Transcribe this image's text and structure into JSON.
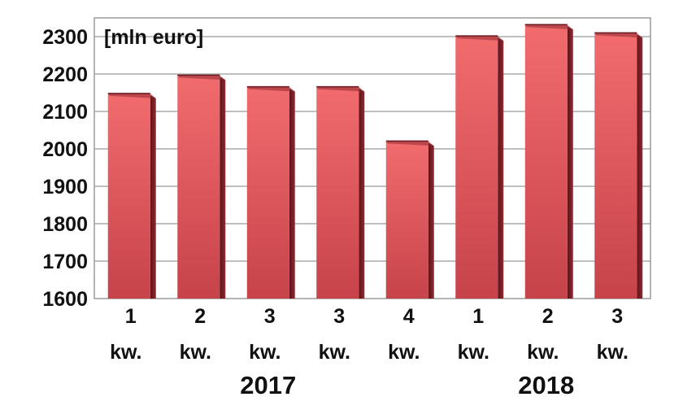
{
  "chart_data": {
    "type": "bar",
    "unit_label": "[mln euro]",
    "categories": [
      {
        "line1": "1",
        "line2": "kw."
      },
      {
        "line1": "2",
        "line2": "kw."
      },
      {
        "line1": "3",
        "line2": "kw."
      },
      {
        "line1": "3",
        "line2": "kw."
      },
      {
        "line1": "4",
        "line2": "kw."
      },
      {
        "line1": "1",
        "line2": "kw."
      },
      {
        "line1": "2",
        "line2": "kw."
      },
      {
        "line1": "3",
        "line2": "kw."
      }
    ],
    "values": [
      2148,
      2197,
      2166,
      2166,
      2021,
      2302,
      2332,
      2310
    ],
    "year_groups": [
      {
        "label": "2017",
        "start": 0,
        "end": 4
      },
      {
        "label": "2018",
        "start": 5,
        "end": 7
      }
    ],
    "ylim": [
      1600,
      2350
    ],
    "yticks": [
      1600,
      1700,
      1800,
      1900,
      2000,
      2100,
      2200,
      2300
    ],
    "grid": true,
    "colors": {
      "bar_light": "#ef6a6c",
      "bar_dark": "#c84248",
      "bar_side": "#7a1c22",
      "grid": "#9a9a9a"
    }
  }
}
